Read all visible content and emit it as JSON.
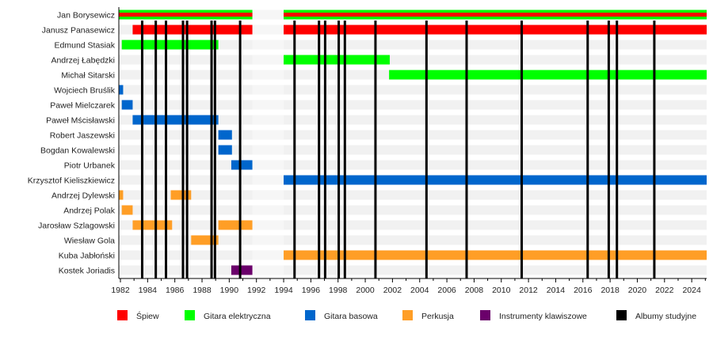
{
  "chart_data": {
    "type": "timeline",
    "title": "",
    "xlim": [
      1981.9,
      2025.1
    ],
    "x_ticks": [
      1982,
      1984,
      1986,
      1988,
      1990,
      1992,
      1994,
      1996,
      1998,
      2000,
      2002,
      2004,
      2006,
      2008,
      2010,
      2012,
      2014,
      2016,
      2018,
      2020,
      2022,
      2024
    ],
    "x_tick_labels": [
      "1982",
      "1984",
      "1986",
      "1988",
      "1990",
      "1992",
      "1994",
      "1996",
      "1998",
      "2000",
      "2002",
      "2004",
      "2006",
      "2008",
      "2010",
      "2012",
      "2014",
      "2016",
      "2018",
      "2020",
      "2022",
      "2024"
    ],
    "roles": [
      {
        "key": "spiew",
        "label": "Śpiew",
        "color": "#ff0000"
      },
      {
        "key": "gitara_elektryczna",
        "label": "Gitara elektryczna",
        "color": "#00ff00"
      },
      {
        "key": "gitara_basowa",
        "label": "Gitara basowa",
        "color": "#0066cc"
      },
      {
        "key": "perkusja",
        "label": "Perkusja",
        "color": "#ff9e26"
      },
      {
        "key": "instrumenty_klawiszowe",
        "label": "Instrumenty klawiszowe",
        "color": "#6b006b"
      },
      {
        "key": "albumy_studyjne",
        "label": "Albumy studyjne",
        "color": "#000000"
      }
    ],
    "members": [
      {
        "name": "Jan Borysewicz",
        "periods": [
          {
            "role": "gitara_elektryczna",
            "start": 1981.9,
            "end": 1991.7,
            "stripe": "spiew"
          },
          {
            "role": "gitara_elektryczna",
            "start": 1994.0,
            "end": 2025.1,
            "stripe": "spiew"
          }
        ]
      },
      {
        "name": "Janusz Panasewicz",
        "periods": [
          {
            "role": "spiew",
            "start": 1982.9,
            "end": 1991.7
          },
          {
            "role": "spiew",
            "start": 1994.0,
            "end": 2025.1
          }
        ]
      },
      {
        "name": "Edmund Stasiak",
        "periods": [
          {
            "role": "gitara_elektryczna",
            "start": 1982.1,
            "end": 1989.2
          }
        ]
      },
      {
        "name": "Andrzej Łabędzki",
        "periods": [
          {
            "role": "gitara_elektryczna",
            "start": 1994.0,
            "end": 2001.8
          }
        ]
      },
      {
        "name": "Michał Sitarski",
        "periods": [
          {
            "role": "gitara_elektryczna",
            "start": 2001.75,
            "end": 2025.1
          }
        ]
      },
      {
        "name": "Wojciech Bruślik",
        "periods": [
          {
            "role": "gitara_basowa",
            "start": 1981.9,
            "end": 1982.2
          }
        ]
      },
      {
        "name": "Paweł Mielczarek",
        "periods": [
          {
            "role": "gitara_basowa",
            "start": 1982.1,
            "end": 1982.9
          }
        ]
      },
      {
        "name": "Paweł Mścisławski",
        "periods": [
          {
            "role": "gitara_basowa",
            "start": 1982.9,
            "end": 1989.2
          }
        ]
      },
      {
        "name": "Robert Jaszewski",
        "periods": [
          {
            "role": "gitara_basowa",
            "start": 1989.2,
            "end": 1990.2
          }
        ]
      },
      {
        "name": "Bogdan Kowalewski",
        "periods": [
          {
            "role": "gitara_basowa",
            "start": 1989.2,
            "end": 1990.2
          }
        ]
      },
      {
        "name": "Piotr Urbanek",
        "periods": [
          {
            "role": "gitara_basowa",
            "start": 1990.15,
            "end": 1991.7
          }
        ]
      },
      {
        "name": "Krzysztof Kieliszkiewicz",
        "periods": [
          {
            "role": "gitara_basowa",
            "start": 1994.0,
            "end": 2025.1
          }
        ]
      },
      {
        "name": "Andrzej Dylewski",
        "periods": [
          {
            "role": "perkusja",
            "start": 1981.9,
            "end": 1982.2
          },
          {
            "role": "perkusja",
            "start": 1985.7,
            "end": 1987.2
          }
        ]
      },
      {
        "name": "Andrzej Polak",
        "periods": [
          {
            "role": "perkusja",
            "start": 1982.1,
            "end": 1982.9
          }
        ]
      },
      {
        "name": "Jarosław Szlagowski",
        "periods": [
          {
            "role": "perkusja",
            "start": 1982.9,
            "end": 1985.8
          },
          {
            "role": "perkusja",
            "start": 1989.2,
            "end": 1991.7
          }
        ]
      },
      {
        "name": "Wiesław Gola",
        "periods": [
          {
            "role": "perkusja",
            "start": 1987.2,
            "end": 1989.2
          }
        ]
      },
      {
        "name": "Kuba Jabłoński",
        "periods": [
          {
            "role": "perkusja",
            "start": 1994.0,
            "end": 2025.1
          }
        ]
      },
      {
        "name": "Kostek Joriadis",
        "periods": [
          {
            "role": "instrumenty_klawiszowe",
            "start": 1990.15,
            "end": 1991.7
          }
        ]
      }
    ],
    "albums": [
      1983.6,
      1984.6,
      1985.35,
      1986.6,
      1986.9,
      1988.7,
      1988.95,
      1990.8,
      1994.8,
      1996.6,
      1997.05,
      1998.05,
      1998.5,
      2000.75,
      2004.5,
      2007.45,
      2011.5,
      2016.35,
      2017.9,
      2018.5,
      2021.25
    ],
    "gap": [
      1991.7,
      1994.0
    ]
  }
}
